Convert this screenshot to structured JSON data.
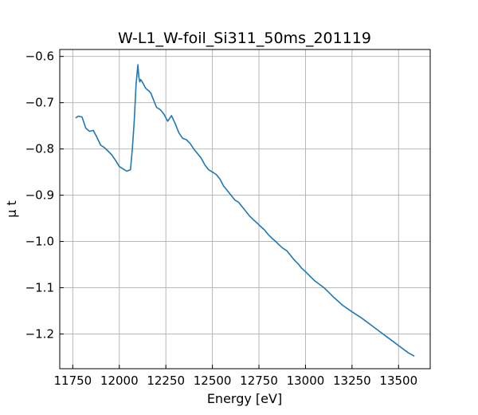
{
  "chart_data": {
    "type": "line",
    "title": "W-L1_W-foil_Si311_50ms_201119",
    "xlabel": "Energy [eV]",
    "ylabel": "μ t",
    "xlim": [
      11680,
      13670
    ],
    "ylim": [
      -1.275,
      -0.585
    ],
    "xticks": [
      11750,
      12000,
      12250,
      12500,
      12750,
      13000,
      13250,
      13500
    ],
    "yticks": [
      -0.6,
      -0.7,
      -0.8,
      -0.9,
      -1.0,
      -1.1,
      -1.2
    ],
    "xtick_labels": [
      "11750",
      "12000",
      "12250",
      "12500",
      "12750",
      "13000",
      "13250",
      "13500"
    ],
    "ytick_labels": [
      "−0.6",
      "−0.7",
      "−0.8",
      "−0.9",
      "−1.0",
      "−1.1",
      "−1.2"
    ],
    "grid": true,
    "series": [
      {
        "color": "#1f77b4",
        "x": [
          11765,
          11780,
          11800,
          11820,
          11840,
          11860,
          11880,
          11900,
          11920,
          11940,
          11960,
          11980,
          12000,
          12020,
          12040,
          12060,
          12070,
          12080,
          12090,
          12100,
          12105,
          12110,
          12115,
          12120,
          12130,
          12140,
          12150,
          12160,
          12170,
          12180,
          12200,
          12220,
          12240,
          12260,
          12280,
          12300,
          12320,
          12340,
          12360,
          12380,
          12400,
          12420,
          12440,
          12460,
          12480,
          12500,
          12520,
          12540,
          12560,
          12580,
          12600,
          12620,
          12640,
          12660,
          12680,
          12700,
          12720,
          12740,
          12760,
          12780,
          12800,
          12820,
          12840,
          12860,
          12880,
          12900,
          12920,
          12940,
          12960,
          12980,
          13000,
          13050,
          13100,
          13150,
          13200,
          13250,
          13300,
          13350,
          13400,
          13450,
          13500,
          13550,
          13585
        ],
        "y": [
          -0.733,
          -0.729,
          -0.731,
          -0.755,
          -0.762,
          -0.76,
          -0.775,
          -0.792,
          -0.797,
          -0.805,
          -0.813,
          -0.825,
          -0.838,
          -0.843,
          -0.848,
          -0.845,
          -0.8,
          -0.74,
          -0.66,
          -0.618,
          -0.645,
          -0.655,
          -0.65,
          -0.653,
          -0.66,
          -0.668,
          -0.672,
          -0.675,
          -0.68,
          -0.69,
          -0.71,
          -0.715,
          -0.725,
          -0.74,
          -0.728,
          -0.745,
          -0.765,
          -0.777,
          -0.78,
          -0.788,
          -0.8,
          -0.81,
          -0.82,
          -0.835,
          -0.845,
          -0.85,
          -0.855,
          -0.865,
          -0.88,
          -0.89,
          -0.9,
          -0.91,
          -0.915,
          -0.925,
          -0.935,
          -0.945,
          -0.953,
          -0.96,
          -0.968,
          -0.975,
          -0.985,
          -0.993,
          -1.0,
          -1.008,
          -1.015,
          -1.02,
          -1.03,
          -1.04,
          -1.048,
          -1.058,
          -1.065,
          -1.085,
          -1.1,
          -1.12,
          -1.138,
          -1.152,
          -1.165,
          -1.18,
          -1.195,
          -1.21,
          -1.225,
          -1.24,
          -1.248
        ]
      }
    ]
  }
}
